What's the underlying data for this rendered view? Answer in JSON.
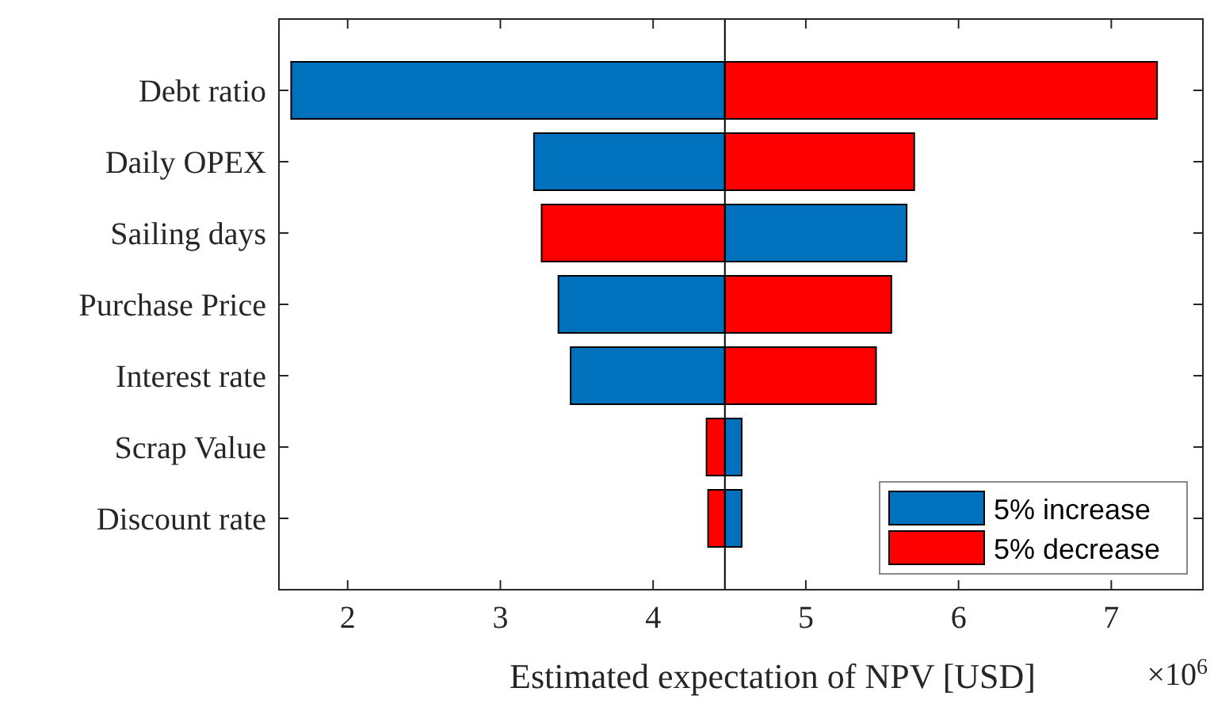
{
  "chart_data": {
    "type": "bar",
    "orientation": "horizontal",
    "xlabel": "Estimated expectation of NPV [USD]",
    "categories": [
      "Debt ratio",
      "Daily OPEX",
      "Sailing days",
      "Purchase Price",
      "Interest rate",
      "Scrap Value",
      "Discount rate"
    ],
    "series": [
      {
        "name": "5% increase",
        "color": "#0072bd",
        "base": [
          4.47,
          4.47,
          4.47,
          4.47,
          4.47,
          4.47,
          4.47
        ],
        "values": [
          -2.84,
          -1.25,
          1.19,
          -1.09,
          -1.01,
          0.11,
          0.11
        ]
      },
      {
        "name": "5% decrease",
        "color": "#ff0000",
        "base": [
          4.47,
          4.47,
          4.47,
          4.47,
          4.47,
          4.47,
          4.47
        ],
        "values": [
          2.83,
          1.24,
          -1.2,
          1.09,
          0.99,
          -0.12,
          -0.11
        ]
      }
    ],
    "xlim": [
      1.55,
      7.6
    ],
    "xticks": [
      2,
      3,
      4,
      5,
      6,
      7
    ],
    "ref_lines": [
      {
        "axis": "x",
        "value": 4.47,
        "color": "#000000"
      }
    ],
    "annotations": [
      "×10$^{6}$"
    ],
    "legend": "bottom right",
    "grid": false
  }
}
